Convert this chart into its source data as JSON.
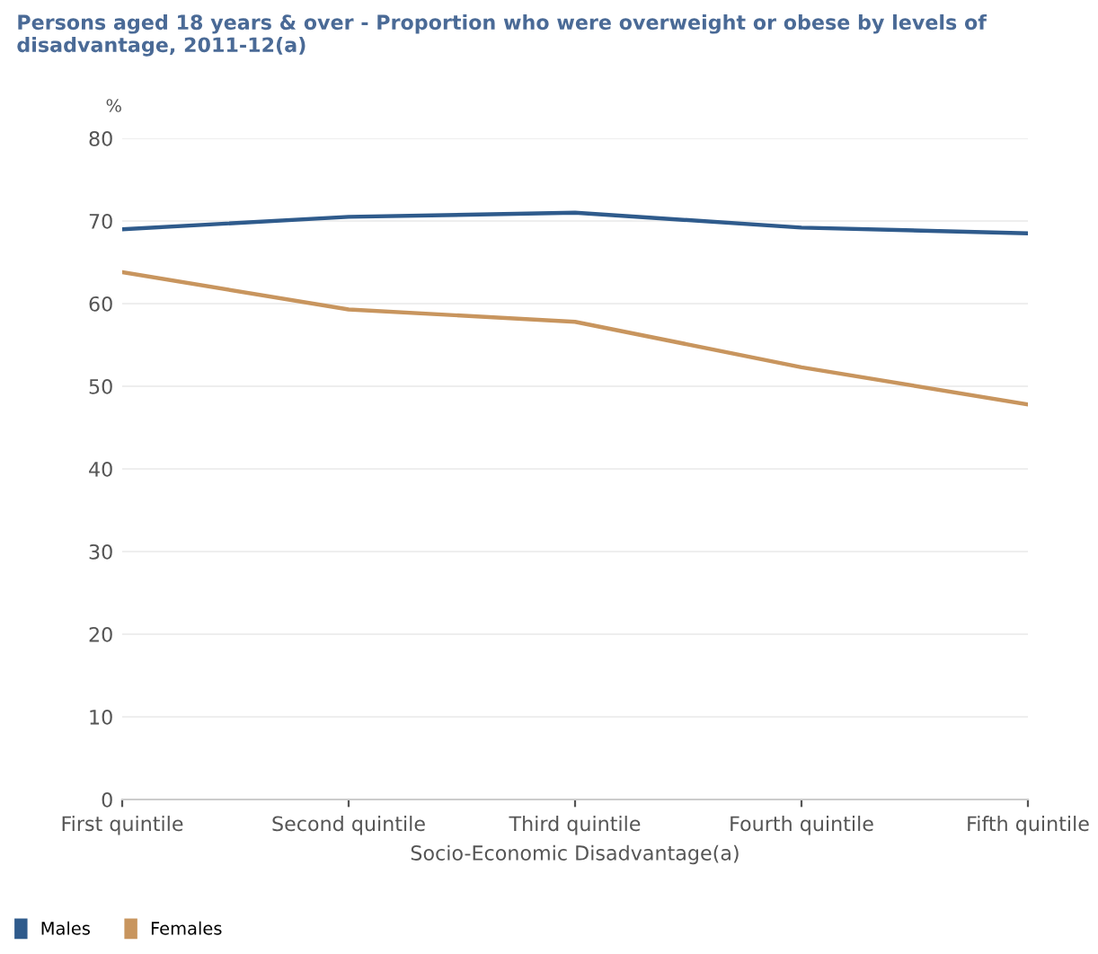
{
  "chart_data": {
    "type": "line",
    "title": "Persons aged 18 years & over - Proportion who were overweight or obese by levels of disadvantage, 2011-12(a)",
    "xlabel": "Socio-Economic Disadvantage(a)",
    "ylabel": "%",
    "categories": [
      "First quintile",
      "Second quintile",
      "Third quintile",
      "Fourth quintile",
      "Fifth quintile"
    ],
    "series": [
      {
        "name": "Males",
        "color": "#2f5b8c",
        "values": [
          69.0,
          70.5,
          71.0,
          69.2,
          68.5
        ]
      },
      {
        "name": "Females",
        "color": "#c8955e",
        "values": [
          63.8,
          59.3,
          57.8,
          52.3,
          47.8
        ]
      }
    ],
    "ylim": [
      0,
      80
    ],
    "yticks": [
      0,
      10,
      20,
      30,
      40,
      50,
      60,
      70,
      80
    ],
    "grid": "y",
    "legend": "bottom left",
    "marker": "none",
    "line_style": "solid"
  }
}
